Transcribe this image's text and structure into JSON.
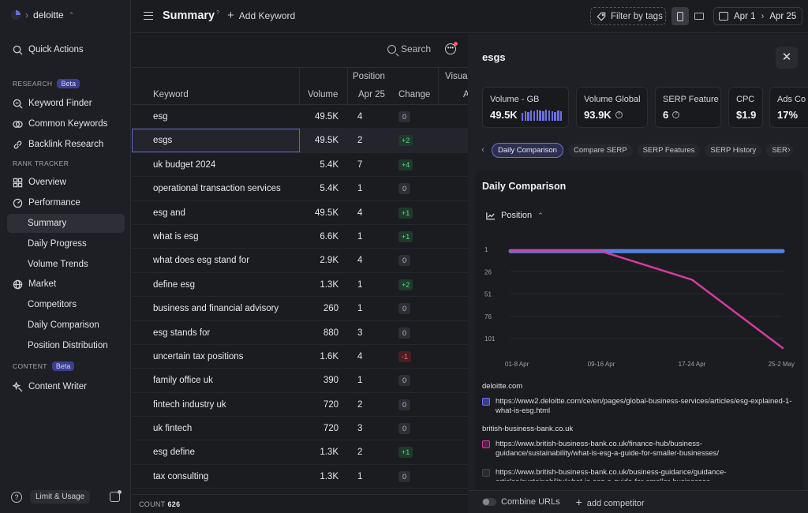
{
  "workspace": {
    "name": "deloitte"
  },
  "sidebar": {
    "quick_actions": "Quick Actions",
    "research_label": "RESEARCH",
    "beta": "Beta",
    "research": [
      "Keyword Finder",
      "Common Keywords",
      "Backlink Research"
    ],
    "rank_label": "RANK TRACKER",
    "overview": "Overview",
    "performance": "Performance",
    "perf_sub": [
      "Summary",
      "Daily Progress",
      "Volume Trends"
    ],
    "market": "Market",
    "market_sub": [
      "Competitors",
      "Daily Comparison",
      "Position Distribution"
    ],
    "content_label": "CONTENT",
    "content_writer": "Content Writer",
    "limit": "Limit & Usage"
  },
  "header": {
    "title": "Summary",
    "title_sup": "?",
    "add_keyword": "Add Keyword",
    "filter": "Filter by tags",
    "date_from": "Apr 1",
    "date_to": "Apr 25"
  },
  "table": {
    "search": "Search",
    "col_keyword": "Keyword",
    "col_volume": "Volume",
    "col_position": "Position",
    "col_date": "Apr 25",
    "col_change": "Change",
    "col_visual": "Visual",
    "col_visual_sub": "A",
    "count_label": "COUNT",
    "count": "626",
    "rows": [
      {
        "kw": "esg",
        "vol": "49.5K",
        "pos": "4",
        "chg": "0",
        "dir": "neu"
      },
      {
        "kw": "esgs",
        "vol": "49.5K",
        "pos": "2",
        "chg": "+2",
        "dir": "up"
      },
      {
        "kw": "uk budget 2024",
        "vol": "5.4K",
        "pos": "7",
        "chg": "+4",
        "dir": "up"
      },
      {
        "kw": "operational transaction services",
        "vol": "5.4K",
        "pos": "1",
        "chg": "0",
        "dir": "neu"
      },
      {
        "kw": "esg and",
        "vol": "49.5K",
        "pos": "4",
        "chg": "+1",
        "dir": "up"
      },
      {
        "kw": "what is esg",
        "vol": "6.6K",
        "pos": "1",
        "chg": "+1",
        "dir": "up"
      },
      {
        "kw": "what does esg stand for",
        "vol": "2.9K",
        "pos": "4",
        "chg": "0",
        "dir": "neu"
      },
      {
        "kw": "define esg",
        "vol": "1.3K",
        "pos": "1",
        "chg": "+2",
        "dir": "up"
      },
      {
        "kw": "business and financial advisory",
        "vol": "260",
        "pos": "1",
        "chg": "0",
        "dir": "neu"
      },
      {
        "kw": "esg stands for",
        "vol": "880",
        "pos": "3",
        "chg": "0",
        "dir": "neu"
      },
      {
        "kw": "uncertain tax positions",
        "vol": "1.6K",
        "pos": "4",
        "chg": "-1",
        "dir": "down"
      },
      {
        "kw": "family office uk",
        "vol": "390",
        "pos": "1",
        "chg": "0",
        "dir": "neu"
      },
      {
        "kw": "fintech industry uk",
        "vol": "720",
        "pos": "2",
        "chg": "0",
        "dir": "neu"
      },
      {
        "kw": "uk fintech",
        "vol": "720",
        "pos": "3",
        "chg": "0",
        "dir": "neu"
      },
      {
        "kw": "esg define",
        "vol": "1.3K",
        "pos": "2",
        "chg": "+1",
        "dir": "up"
      },
      {
        "kw": "tax consulting",
        "vol": "1.3K",
        "pos": "1",
        "chg": "0",
        "dir": "neu"
      }
    ]
  },
  "panel": {
    "title": "esgs",
    "metrics": [
      {
        "label": "Volume - GB",
        "value": "49.5K"
      },
      {
        "label": "Volume Global",
        "value": "93.9K"
      },
      {
        "label": "SERP Feature",
        "value": "6"
      },
      {
        "label": "CPC",
        "value": "$1.9"
      },
      {
        "label": "Ads Co",
        "value": "17%"
      }
    ],
    "tabs": [
      "Daily Comparison",
      "Compare SERP",
      "SERP Features",
      "SERP History",
      "SER"
    ],
    "card_title": "Daily Comparison",
    "metric_select": "Position",
    "domain1": "deloitte.com",
    "url1": "https://www2.deloitte.com/ce/en/pages/global-business-services/articles/esg-explained-1-what-is-esg.html",
    "domain2": "british-business-bank.co.uk",
    "url2": "https://www.british-business-bank.co.uk/finance-hub/business-guidance/sustainability/what-is-esg-a-guide-for-smaller-businesses/",
    "url3": "https://www.british-business-bank.co.uk/business-guidance/guidance-articles/sustainability/what-is-esg-a-guide-for-smaller-businesses",
    "combine": "Combine URLs",
    "add_competitor": "add competitor"
  },
  "colors": {
    "accent": "#5d63d8",
    "blue_line": "#4d8fe0",
    "pink_line": "#d63aa0",
    "up": "#63d08f",
    "down": "#ff6b74"
  },
  "chart_data": {
    "type": "line",
    "x": [
      "01-8 Apr",
      "09-16 Apr",
      "17-24 Apr",
      "25-2 May"
    ],
    "y_ticks": [
      "1",
      "26",
      "51",
      "76",
      "101"
    ],
    "y_reversed": true,
    "ylim": [
      1,
      101
    ],
    "series": [
      {
        "color": "#4d8fe0",
        "values": [
          3,
          3,
          3,
          3
        ]
      },
      {
        "color": "#6d70e6",
        "values": [
          3,
          3,
          3,
          3
        ]
      },
      {
        "color": "#d63aa0",
        "values": [
          3,
          3,
          35,
          113
        ]
      }
    ]
  }
}
